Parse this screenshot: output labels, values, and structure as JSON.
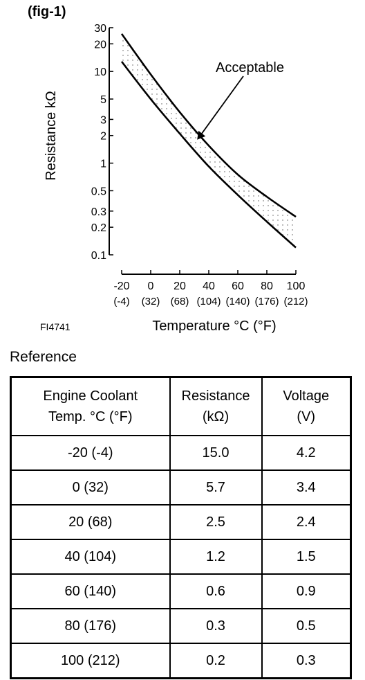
{
  "figure_label": "(fig-1)",
  "figure_code": "FI4741",
  "chart_data": {
    "type": "line",
    "scale_y": "log",
    "ylabel": "Resistance kΩ",
    "xlabel": "Temperature °C (°F)",
    "xlim": [
      -20,
      100
    ],
    "ylim": [
      0.1,
      30
    ],
    "x_ticks": [
      -20,
      0,
      20,
      40,
      60,
      80,
      100
    ],
    "x_ticks_f": [
      "(-4)",
      "(32)",
      "(68)",
      "(104)",
      "(140)",
      "(176)",
      "(212)"
    ],
    "y_ticks": [
      0.1,
      0.2,
      0.3,
      0.5,
      1,
      2,
      3,
      5,
      10,
      20,
      30
    ],
    "y_tick_labels": [
      "0.1",
      "0.2",
      "0.3",
      "0.5",
      "1",
      "2",
      "3",
      "5",
      "10",
      "20",
      "30"
    ],
    "annotation": "Acceptable",
    "annotation_at": {
      "x": 32,
      "y": 1.8
    },
    "series": [
      {
        "x": [
          -20,
          0,
          20,
          40,
          60,
          80,
          100
        ],
        "y": [
          25.7,
          9.3,
          3.6,
          1.55,
          0.75,
          0.43,
          0.26
        ]
      },
      {
        "x": [
          -20,
          0,
          20,
          40,
          60,
          80,
          100
        ],
        "y": [
          12.8,
          5.0,
          2.1,
          0.92,
          0.45,
          0.23,
          0.12
        ]
      }
    ],
    "grid": false
  },
  "reference": {
    "title": "Reference",
    "headers": [
      [
        "Engine Coolant",
        "Temp. °C (°F)"
      ],
      [
        "Resistance",
        "(kΩ)"
      ],
      [
        "Voltage",
        "(V)"
      ]
    ],
    "rows": [
      [
        "-20 (-4)",
        "15.0",
        "4.2"
      ],
      [
        "0 (32)",
        "5.7",
        "3.4"
      ],
      [
        "20 (68)",
        "2.5",
        "2.4"
      ],
      [
        "40 (104)",
        "1.2",
        "1.5"
      ],
      [
        "60 (140)",
        "0.6",
        "0.9"
      ],
      [
        "80 (176)",
        "0.3",
        "0.5"
      ],
      [
        "100 (212)",
        "0.2",
        "0.3"
      ]
    ]
  }
}
